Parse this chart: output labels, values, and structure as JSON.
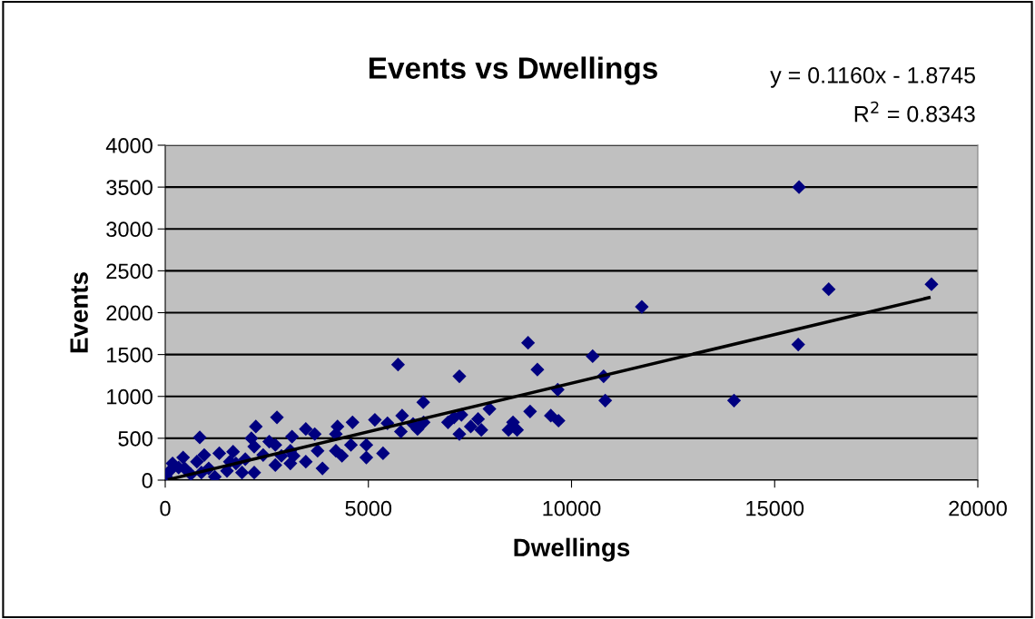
{
  "chart_data": {
    "type": "scatter",
    "title": "Events vs Dwellings",
    "xlabel": "Dwellings",
    "ylabel": "Events",
    "xlim": [
      0,
      20000
    ],
    "xticks": [
      0,
      5000,
      10000,
      15000,
      20000
    ],
    "ylim": [
      0,
      4000
    ],
    "yticks": [
      0,
      500,
      1000,
      1500,
      2000,
      2500,
      3000,
      3500,
      4000
    ],
    "grid": "y",
    "legend": false,
    "annotations": [
      "y = 0.1160x - 1.8745",
      "R$^{2}$ = 0.8343"
    ],
    "series": [
      {
        "marker": "diamond",
        "color": "#000080",
        "x": [
          15600,
          11730,
          18860,
          16330,
          15580,
          14000,
          8930,
          10520,
          9160,
          7240,
          10790,
          9660,
          10830,
          6350,
          7980,
          8980,
          7290,
          7110,
          6360,
          6960,
          7700,
          7520,
          7780,
          7240,
          9490,
          9680,
          8560,
          8450,
          8660,
          6100,
          5730,
          2750,
          850,
          2230,
          3460,
          4240,
          4610,
          5160,
          5470,
          5830,
          5800,
          6210,
          4950,
          5360,
          3870,
          3680,
          3120,
          2560,
          2120,
          1330,
          960,
          440,
          1590,
          1970,
          2190,
          1890,
          2710,
          3080,
          3460,
          4200,
          4570,
          4350,
          3750,
          4950,
          110,
          630,
          1220,
          330,
          20,
          1070,
          1670,
          2710,
          3080,
          4200,
          3160,
          2410,
          780,
          180,
          480,
          890,
          1520,
          1740,
          2190,
          2860
        ],
        "values": [
          3500,
          2070,
          2340,
          2280,
          1620,
          950,
          1640,
          1480,
          1320,
          1240,
          1240,
          1080,
          950,
          930,
          850,
          820,
          780,
          750,
          690,
          690,
          730,
          640,
          600,
          550,
          770,
          710,
          690,
          600,
          600,
          670,
          1380,
          750,
          510,
          640,
          610,
          640,
          690,
          720,
          680,
          770,
          580,
          610,
          270,
          320,
          140,
          550,
          520,
          460,
          500,
          320,
          300,
          270,
          220,
          250,
          90,
          90,
          180,
          200,
          220,
          350,
          420,
          290,
          350,
          420,
          110,
          70,
          40,
          150,
          40,
          140,
          340,
          420,
          350,
          550,
          290,
          300,
          220,
          200,
          140,
          90,
          110,
          200,
          400,
          290
        ]
      },
      {
        "type": "line",
        "marker": "none",
        "color": "#000000",
        "x": [
          100,
          18800
        ],
        "values": [
          10,
          2180
        ]
      }
    ]
  }
}
